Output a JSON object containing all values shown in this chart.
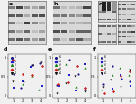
{
  "bg_color": "#f0f0f0",
  "panel_label_size": 4.5,
  "gel_bg_light": "#e8e8e8",
  "gel_bg_med": "#d5d5d5",
  "gel_band_dark": "#404040",
  "gel_band_med": "#707070",
  "gel_band_light": "#aaaaaa",
  "white": "#ffffff",
  "scatter_series_colors": [
    "#1a1a80",
    "#2222cc",
    "#117711",
    "#cc2222",
    "#111111"
  ],
  "scatter_markers": [
    "o",
    "s",
    "^",
    "D",
    "v"
  ],
  "panels_top": [
    "a",
    "b",
    "c"
  ],
  "panels_bot": [
    "d",
    "e",
    "f"
  ]
}
